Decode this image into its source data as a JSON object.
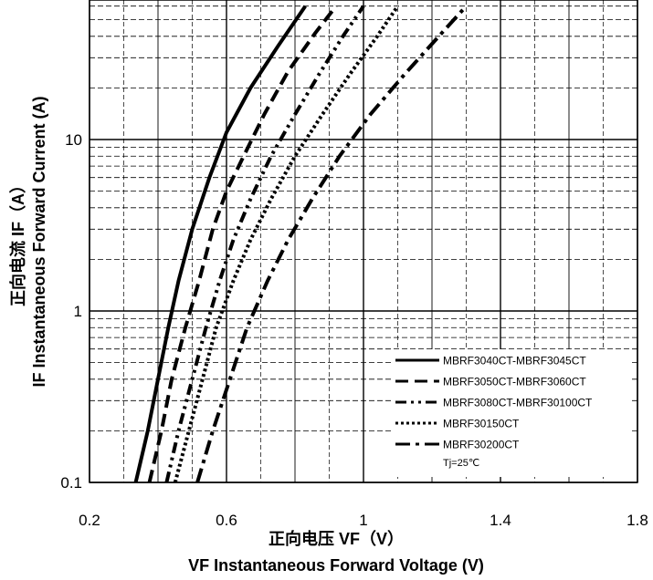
{
  "chart_data": {
    "type": "line",
    "x_scale": "linear",
    "y_scale": "log",
    "xlim": [
      0.2,
      1.8
    ],
    "ylim": [
      0.1,
      60
    ],
    "x_ticks": [
      "0.2",
      "0.6",
      "1",
      "1.4",
      "1.8"
    ],
    "y_ticks": [
      "0.1",
      "1",
      "10"
    ],
    "xlabel_cn": "正向电压  VF（V）",
    "xlabel": "VF  Instantaneous Forward Voltage (V)",
    "ylabel_cn": "正向电流  IF（A）",
    "ylabel": "IF Instantaneous Forward Current (A)",
    "grid": true,
    "legend_position": "bottom-right",
    "legend_note": "Tj=25℃",
    "series": [
      {
        "name": "MBRF3040CT-MBRF3045CT",
        "dash": "solid",
        "x": [
          0.335,
          0.37,
          0.4,
          0.43,
          0.46,
          0.5,
          0.55,
          0.6,
          0.67,
          0.75,
          0.83
        ],
        "y": [
          0.1,
          0.2,
          0.4,
          0.8,
          1.5,
          3,
          6,
          11,
          20,
          35,
          60
        ]
      },
      {
        "name": "MBRF3050CT-MBRF3060CT",
        "dash": "dash",
        "x": [
          0.375,
          0.41,
          0.44,
          0.48,
          0.52,
          0.56,
          0.6,
          0.65,
          0.71,
          0.78,
          0.86,
          0.92
        ],
        "y": [
          0.1,
          0.2,
          0.4,
          0.8,
          1.5,
          3,
          5,
          8,
          14,
          25,
          42,
          60
        ]
      },
      {
        "name": "MBRF3080CT-MBRF30100CT",
        "dash": "dash-dot-dot",
        "x": [
          0.425,
          0.46,
          0.5,
          0.54,
          0.58,
          0.62,
          0.67,
          0.73,
          0.8,
          0.87,
          0.94,
          1.0
        ],
        "y": [
          0.1,
          0.2,
          0.4,
          0.8,
          1.5,
          2.6,
          4.5,
          8,
          14,
          24,
          40,
          60
        ]
      },
      {
        "name": "MBRF30150CT",
        "dash": "dotted",
        "x": [
          0.45,
          0.49,
          0.53,
          0.57,
          0.62,
          0.67,
          0.73,
          0.8,
          0.88,
          0.96,
          1.04,
          1.1
        ],
        "y": [
          0.1,
          0.2,
          0.4,
          0.8,
          1.5,
          2.6,
          4.5,
          8,
          14,
          24,
          40,
          60
        ]
      },
      {
        "name": "MBRF30200CT",
        "dash": "dash-dot",
        "x": [
          0.515,
          0.56,
          0.61,
          0.66,
          0.72,
          0.78,
          0.85,
          0.93,
          1.02,
          1.12,
          1.22,
          1.3
        ],
        "y": [
          0.1,
          0.2,
          0.4,
          0.8,
          1.5,
          2.6,
          4.5,
          8,
          14,
          24,
          40,
          60
        ]
      }
    ]
  },
  "colors": {
    "line": "#000000",
    "grid": "#000000",
    "background": "#ffffff"
  }
}
